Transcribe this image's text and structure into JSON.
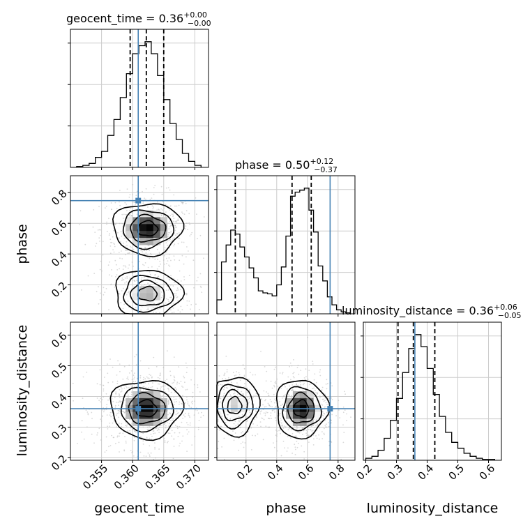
{
  "chart_data": {
    "type": "corner",
    "params": [
      "geocent_time",
      "phase",
      "luminosity_distance"
    ],
    "axis_labels": {
      "geocent_time": "geocent_time",
      "phase": "phase",
      "luminosity_distance": "luminosity_distance"
    },
    "axis_ranges": {
      "geocent_time": [
        0.35,
        0.3722
      ],
      "phase": [
        0.01,
        0.91
      ],
      "luminosity_distance": [
        0.192,
        0.642
      ]
    },
    "ticks": {
      "geocent_time": {
        "values": [
          0.355,
          0.36,
          0.365,
          0.37
        ],
        "labels": [
          "0.355",
          "0.360",
          "0.365",
          "0.370"
        ]
      },
      "phase": {
        "values": [
          0.2,
          0.4,
          0.6,
          0.8
        ],
        "labels": [
          "0.2",
          "0.4",
          "0.6",
          "0.8"
        ]
      },
      "luminosity_distance": {
        "values": [
          0.2,
          0.3,
          0.4,
          0.5,
          0.6
        ],
        "labels": [
          "0.2",
          "0.3",
          "0.4",
          "0.5",
          "0.6"
        ]
      }
    },
    "titles": {
      "geocent_time": {
        "name": "geocent_time",
        "median": "0.36",
        "plus": "+0.00",
        "minus": "−0.00"
      },
      "phase": {
        "name": "phase",
        "median": "0.50",
        "plus": "+0.12",
        "minus": "−0.37"
      },
      "luminosity_distance": {
        "name": "luminosity_distance",
        "median": "0.36",
        "plus": "+0.06",
        "minus": "−0.05"
      }
    },
    "truths": {
      "geocent_time": 0.3609,
      "phase": 0.748,
      "luminosity_distance": 0.36
    },
    "quantiles": {
      "geocent_time": [
        0.3596,
        0.3622,
        0.365
      ],
      "phase": [
        0.13,
        0.5,
        0.625
      ],
      "luminosity_distance": [
        0.305,
        0.355,
        0.425
      ]
    },
    "histograms": {
      "geocent_time": {
        "edges": [
          0.351,
          0.352,
          0.353,
          0.354,
          0.355,
          0.356,
          0.357,
          0.358,
          0.359,
          0.36,
          0.361,
          0.362,
          0.363,
          0.364,
          0.365,
          0.366,
          0.367,
          0.368,
          0.369,
          0.37,
          0.371
        ],
        "counts": [
          1,
          2,
          4,
          10,
          16,
          32,
          48,
          70,
          94,
          114,
          122,
          126,
          114,
          92,
          68,
          44,
          28,
          14,
          6,
          2
        ]
      },
      "phase": {
        "edges": [
          0.01,
          0.04,
          0.07,
          0.1,
          0.13,
          0.16,
          0.19,
          0.22,
          0.25,
          0.28,
          0.31,
          0.34,
          0.37,
          0.4,
          0.43,
          0.46,
          0.49,
          0.52,
          0.55,
          0.58,
          0.61,
          0.64,
          0.67,
          0.7,
          0.73,
          0.76,
          0.79,
          0.82,
          0.85,
          0.88
        ],
        "counts": [
          14,
          52,
          69,
          84,
          80,
          67,
          57,
          46,
          36,
          23,
          21,
          20,
          18,
          29,
          47,
          78,
          118,
          122,
          124,
          126,
          104,
          82,
          48,
          33,
          17,
          9,
          4,
          2,
          1
        ]
      },
      "luminosity_distance": {
        "edges": [
          0.2,
          0.22,
          0.24,
          0.26,
          0.28,
          0.3,
          0.32,
          0.34,
          0.36,
          0.38,
          0.4,
          0.42,
          0.44,
          0.46,
          0.48,
          0.5,
          0.52,
          0.54,
          0.56,
          0.58,
          0.6,
          0.62
        ],
        "counts": [
          2,
          4,
          10,
          22,
          40,
          62,
          88,
          112,
          126,
          114,
          92,
          66,
          44,
          28,
          18,
          12,
          7,
          4,
          2,
          1,
          1
        ]
      }
    },
    "density_modes": [
      {
        "panel": "phase_vs_geocent_time",
        "x": 0.3624,
        "y": 0.565,
        "spread_x": 0.0028,
        "spread_y": 0.085,
        "weight": 0.62
      },
      {
        "panel": "phase_vs_geocent_time",
        "x": 0.3624,
        "y": 0.14,
        "spread_x": 0.0027,
        "spread_y": 0.08,
        "weight": 0.38
      },
      {
        "panel": "luminosity_distance_vs_geocent_time",
        "x": 0.3622,
        "y": 0.36,
        "spread_x": 0.0029,
        "spread_y": 0.048,
        "weight": 1.0
      },
      {
        "panel": "luminosity_distance_vs_phase",
        "x": 0.125,
        "y": 0.37,
        "spread_x": 0.08,
        "spread_y": 0.048,
        "weight": 0.35
      },
      {
        "panel": "luminosity_distance_vs_phase",
        "x": 0.56,
        "y": 0.36,
        "spread_x": 0.085,
        "spread_y": 0.048,
        "weight": 0.65
      }
    ],
    "colors": {
      "truth": "#4682b4",
      "hist": "#000000",
      "scatter": "#b8b8b8",
      "grid": "#cccccc"
    },
    "grid": true
  }
}
